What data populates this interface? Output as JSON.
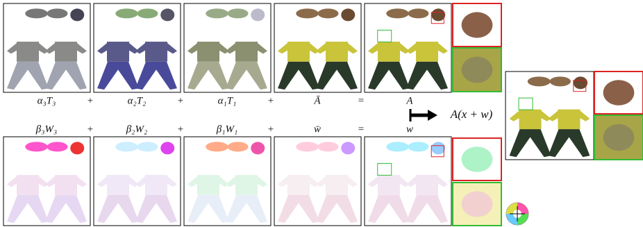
{
  "top_row": {
    "terms": [
      "α₃T₃",
      "α₂T₂",
      "α₁T₁",
      "Ā",
      "A"
    ],
    "operators": [
      "+",
      "+",
      "+",
      "="
    ]
  },
  "bottom_row": {
    "terms": [
      "β₃W₃",
      "β₂W₂",
      "β₁W₁",
      "w̄",
      "w"
    ],
    "operators": [
      "+",
      "+",
      "+",
      "="
    ]
  },
  "arrow_label": "A(x + w)"
}
